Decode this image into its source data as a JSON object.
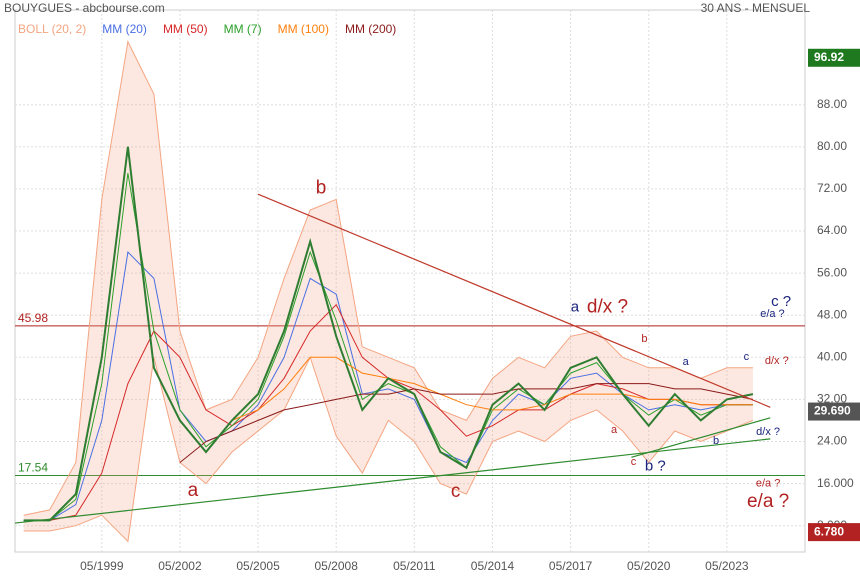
{
  "chart_data": {
    "type": "line",
    "header_left": "BOUYGUES - abcbourse.com",
    "header_right": "30 ANS - MENSUEL",
    "x": [
      "05/1996",
      "05/1997",
      "05/1998",
      "05/1999",
      "05/2000",
      "05/2001",
      "05/2002",
      "05/2003",
      "05/2004",
      "05/2005",
      "05/2006",
      "05/2007",
      "05/2008",
      "05/2009",
      "05/2010",
      "05/2011",
      "05/2012",
      "05/2013",
      "05/2014",
      "05/2015",
      "05/2016",
      "05/2017",
      "05/2018",
      "05/2019",
      "05/2020",
      "05/2021",
      "05/2022",
      "05/2023",
      "05/2024"
    ],
    "xlim": [
      "01/1996",
      "05/2026"
    ],
    "xticks": [
      "05/1999",
      "05/2002",
      "05/2005",
      "05/2008",
      "05/2011",
      "05/2014",
      "05/2017",
      "05/2020",
      "05/2023"
    ],
    "ylim": [
      3,
      106
    ],
    "yticks": [
      {
        "value": 8,
        "label": "8.000"
      },
      {
        "value": 16,
        "label": "16.000"
      },
      {
        "value": 24,
        "label": "24.00"
      },
      {
        "value": 32,
        "label": "32.00"
      },
      {
        "value": 40,
        "label": "40.00"
      },
      {
        "value": 48,
        "label": "48.00"
      },
      {
        "value": 56,
        "label": "56.00"
      },
      {
        "value": 64,
        "label": "64.00"
      },
      {
        "value": 72,
        "label": "72.00"
      },
      {
        "value": 80,
        "label": "80.00"
      },
      {
        "value": 88,
        "label": "88.00"
      }
    ],
    "grid": true,
    "price": {
      "color": "#2e7d32",
      "values": [
        9,
        9,
        14,
        40,
        80,
        38,
        28,
        22,
        28,
        33,
        45,
        62,
        44,
        30,
        36,
        33,
        22,
        19,
        31,
        35,
        30,
        38,
        40,
        33,
        27,
        33,
        28,
        32,
        33
      ]
    },
    "series": [
      {
        "name": "BOLL (20, 2)",
        "color": "#f4a582",
        "upper": [
          10,
          11,
          20,
          70,
          100,
          90,
          45,
          30,
          32,
          40,
          55,
          68,
          70,
          42,
          40,
          38,
          30,
          28,
          36,
          40,
          38,
          44,
          45,
          40,
          38,
          38,
          36,
          38,
          38
        ],
        "lower": [
          7,
          7,
          8,
          10,
          5,
          40,
          20,
          16,
          22,
          26,
          30,
          40,
          25,
          18,
          28,
          24,
          16,
          14,
          24,
          26,
          24,
          28,
          30,
          26,
          20,
          26,
          24,
          26,
          28
        ]
      },
      {
        "name": "MM (20)",
        "color": "#4a6fe3",
        "values": [
          9,
          9,
          12,
          28,
          60,
          55,
          30,
          24,
          26,
          31,
          40,
          55,
          52,
          33,
          34,
          32,
          22,
          20,
          28,
          33,
          31,
          36,
          37,
          33,
          30,
          31,
          30,
          31,
          31
        ]
      },
      {
        "name": "MM (50)",
        "color": "#d62728",
        "values": [
          9,
          9,
          10,
          18,
          35,
          45,
          40,
          30,
          27,
          30,
          36,
          45,
          50,
          40,
          36,
          34,
          30,
          25,
          27,
          30,
          30,
          33,
          35,
          34,
          32,
          32,
          31,
          31,
          31
        ]
      },
      {
        "name": "MM (7)",
        "color": "#2ca02c",
        "values": [
          9,
          9,
          13,
          35,
          75,
          45,
          30,
          23,
          27,
          32,
          44,
          60,
          47,
          32,
          35,
          33,
          23,
          19,
          30,
          34,
          31,
          37,
          39,
          33,
          29,
          32,
          29,
          31,
          31
        ]
      },
      {
        "name": "MM (100)",
        "color": "#ff7f0e",
        "values": [
          null,
          null,
          null,
          null,
          null,
          null,
          null,
          null,
          28,
          30,
          34,
          40,
          40,
          37,
          36,
          35,
          33,
          31,
          30,
          30,
          31,
          33,
          33,
          33,
          32,
          32,
          31,
          31,
          31
        ]
      },
      {
        "name": "MM (200)",
        "color": "#8b1a1a",
        "values": [
          null,
          null,
          null,
          null,
          null,
          null,
          20,
          24,
          26,
          28,
          30,
          31,
          32,
          33,
          33,
          34,
          33,
          33,
          33,
          34,
          34,
          34,
          35,
          35,
          35,
          34,
          34,
          33,
          32
        ]
      }
    ],
    "levels": [
      {
        "value": 45.98,
        "color": "#b22222"
      },
      {
        "value": 17.54,
        "color": "#2e8b2e"
      }
    ],
    "badges": [
      {
        "value": 96.92,
        "color": "#1f7a1f"
      },
      {
        "value": 29.69,
        "label": "29.690",
        "color": "#555555"
      },
      {
        "value": 6.78,
        "label": "6.780",
        "color": "#b22222"
      }
    ],
    "trendlines": [
      {
        "color": "#c0392b",
        "points": [
          [
            "05/2005",
            71
          ],
          [
            "01/2025",
            30.5
          ]
        ]
      },
      {
        "color": "#2e8b2e",
        "points": [
          [
            "01/1996",
            8.5
          ],
          [
            "01/2025",
            24.5
          ]
        ]
      },
      {
        "color": "#2e8b2e",
        "points": [
          [
            "09/2019",
            21
          ],
          [
            "01/2025",
            28.5
          ]
        ]
      }
    ],
    "annotations": [
      {
        "text": "b",
        "x": "10/2007",
        "y": 72.1,
        "color": "#b22222",
        "style": "large"
      },
      {
        "text": "a",
        "x": "11/2002",
        "y": 14.6,
        "color": "#b22222",
        "style": "large"
      },
      {
        "text": "c",
        "x": "12/2012",
        "y": 14.4,
        "color": "#b22222",
        "style": "large"
      },
      {
        "text": "a",
        "x": "07/2017",
        "y": 49.5,
        "color": "#1a237e",
        "style": "medium"
      },
      {
        "text": "d/x ?",
        "x": "10/2018",
        "y": 49.5,
        "color": "#b22222",
        "style": "large"
      },
      {
        "text": "b",
        "x": "03/2020",
        "y": 43.5,
        "color": "#b22222",
        "style": "small"
      },
      {
        "text": "a",
        "x": "10/2021",
        "y": 39.1,
        "color": "#1a237e",
        "style": "small"
      },
      {
        "text": "a",
        "x": "01/2019",
        "y": 26.2,
        "color": "#b22222",
        "style": "small"
      },
      {
        "text": "c",
        "x": "10/2019",
        "y": 20.1,
        "color": "#b22222",
        "style": "small"
      },
      {
        "text": "b ?",
        "x": "08/2020",
        "y": 19.2,
        "color": "#1a237e",
        "style": "medium"
      },
      {
        "text": "b",
        "x": "12/2022",
        "y": 24.1,
        "color": "#1a237e",
        "style": "small"
      },
      {
        "text": "c",
        "x": "02/2024",
        "y": 40,
        "color": "#1a237e",
        "style": "small"
      },
      {
        "text": "d/x ?",
        "x": "04/2025",
        "y": 39.3,
        "color": "#b22222",
        "style": "small"
      },
      {
        "text": "c ?",
        "x": "06/2025",
        "y": 50.5,
        "color": "#1a237e",
        "style": "medium"
      },
      {
        "text": "e/a ?",
        "x": "02/2025",
        "y": 48.2,
        "color": "#1a237e",
        "style": "small"
      },
      {
        "text": "d/x ?",
        "x": "12/2024",
        "y": 25.8,
        "color": "#1a237e",
        "style": "small"
      },
      {
        "text": "e/a ?",
        "x": "12/2024",
        "y": 16,
        "color": "#b22222",
        "style": "small"
      },
      {
        "text": "e/a ?",
        "x": "12/2024",
        "y": 12.5,
        "color": "#b22222",
        "style": "large"
      }
    ]
  }
}
